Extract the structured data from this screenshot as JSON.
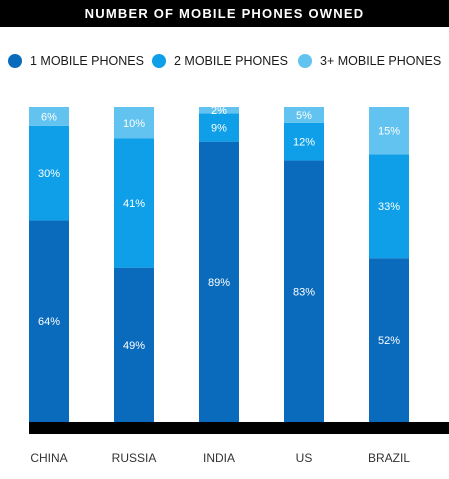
{
  "title": "NUMBER OF MOBILE PHONES OWNED",
  "colors": {
    "one": "#0a6bbd",
    "two": "#0e9fe8",
    "three_plus": "#62c3f0",
    "baseline": "#000000",
    "label_text": "#ffffff",
    "category_text": "#333333"
  },
  "legend": [
    {
      "label": "1 MOBILE PHONES",
      "color": "#0a6bbd"
    },
    {
      "label": "2 MOBILE PHONES",
      "color": "#0e9fe8"
    },
    {
      "label": "3+ MOBILE PHONES",
      "color": "#62c3f0"
    }
  ],
  "chart_data": {
    "type": "bar",
    "stacked": true,
    "categories": [
      "CHINA",
      "RUSSIA",
      "INDIA",
      "US",
      "BRAZIL"
    ],
    "series": [
      {
        "name": "1 MOBILE PHONES",
        "values": [
          64,
          49,
          89,
          83,
          52
        ],
        "labels": [
          "64%",
          "49%",
          "89%",
          "83%",
          "52%"
        ]
      },
      {
        "name": "2 MOBILE PHONES",
        "values": [
          30,
          41,
          9,
          12,
          33
        ],
        "labels": [
          "30%",
          "41%",
          "9%",
          "12%",
          "33%"
        ]
      },
      {
        "name": "3+ MOBILE PHONES",
        "values": [
          6,
          10,
          2,
          5,
          15
        ],
        "labels": [
          "6%",
          "10%",
          "2%",
          "5%",
          "15%"
        ]
      }
    ],
    "ylim": [
      0,
      100
    ],
    "grid": false,
    "legend_position": "top"
  }
}
